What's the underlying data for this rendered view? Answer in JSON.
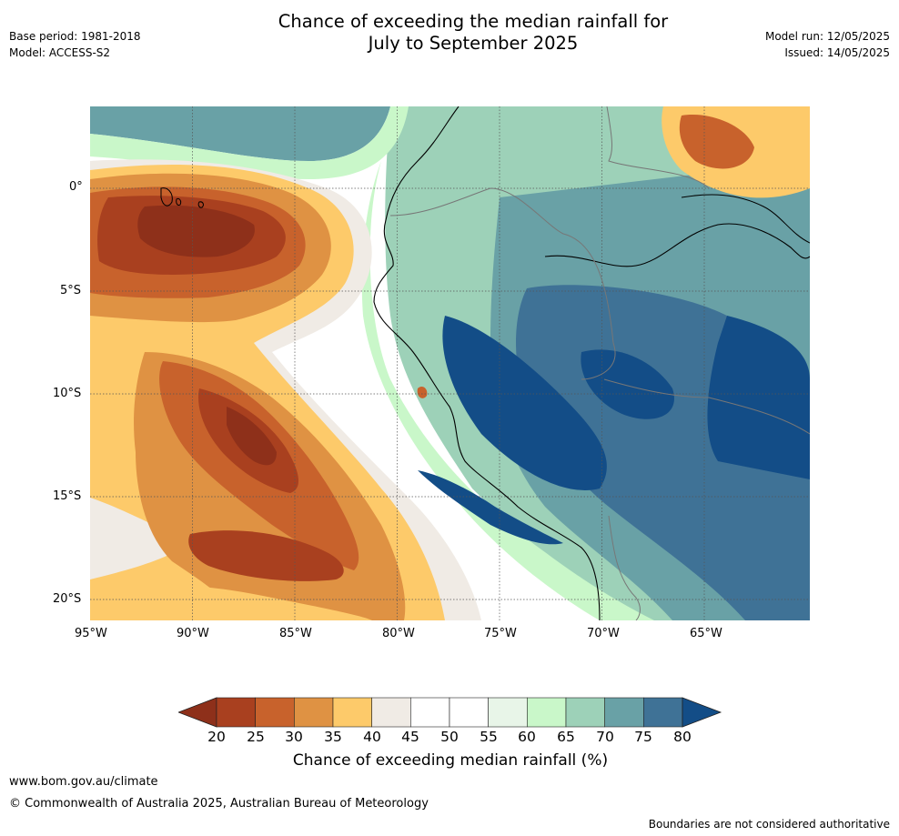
{
  "header": {
    "title_line1": "Chance of exceeding the median rainfall for",
    "title_line2": "July to September 2025",
    "base_period": "Base period: 1981-2018",
    "model": "Model: ACCESS-S2",
    "model_run": "Model run: 12/05/2025",
    "issued": "Issued: 14/05/2025"
  },
  "map": {
    "longitude_labels": [
      "95°W",
      "90°W",
      "85°W",
      "80°W",
      "75°W",
      "70°W",
      "65°W"
    ],
    "latitude_labels": [
      "0°",
      "5°S",
      "10°S",
      "15°S",
      "20°S"
    ],
    "colors": {
      "lt20": "#8e301a",
      "c20_25": "#a9401f",
      "c25_30": "#c8622c",
      "c30_35": "#df9243",
      "c35_40": "#fdca6a",
      "c40_45": "#f0ebe5",
      "c45_55": "#ffffff",
      "c55_60": "#e8f5e8",
      "c60_65": "#c9f7c9",
      "c65_70": "#9dd1b8",
      "c70_75": "#69a1a6",
      "c75_80": "#3f7296",
      "gt80": "#134d87"
    }
  },
  "colorbar": {
    "ticks": [
      "20",
      "25",
      "30",
      "35",
      "40",
      "45",
      "50",
      "55",
      "60",
      "65",
      "70",
      "75",
      "80"
    ],
    "segment_colors": [
      "#a9401f",
      "#c8622c",
      "#df9243",
      "#fdca6a",
      "#f0ebe5",
      "#ffffff",
      "#ffffff",
      "#e8f5e8",
      "#c9f7c9",
      "#9dd1b8",
      "#69a1a6",
      "#3f7296"
    ],
    "low_color": "#8e301a",
    "high_color": "#134d87",
    "label": "Chance of exceeding median rainfall (%)"
  },
  "footer": {
    "website": "www.bom.gov.au/climate",
    "copyright": "© Commonwealth of Australia 2025, Australian Bureau of Meteorology",
    "disclaimer": "Boundaries are not considered authoritative"
  }
}
